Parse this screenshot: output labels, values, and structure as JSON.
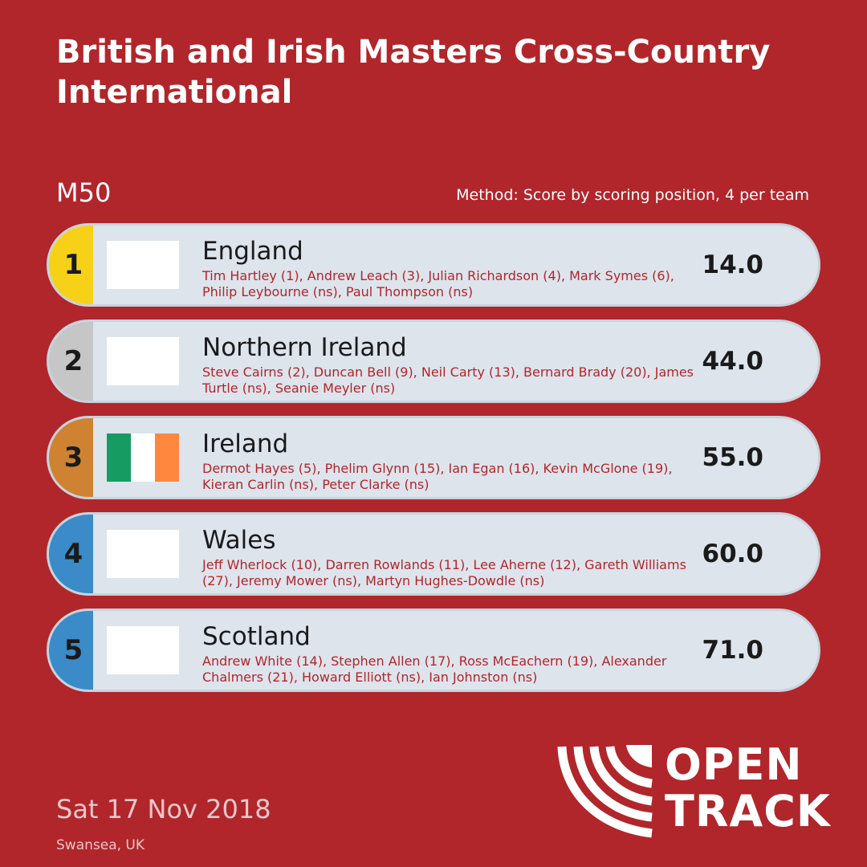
{
  "header": {
    "title": "British and Irish Masters Cross-Country International",
    "category": "M50",
    "method": "Method: Score by scoring position, 4 per team"
  },
  "results": [
    {
      "rank": "1",
      "team": "England",
      "athletes": "Tim Hartley (1), Andrew Leach (3), Julian Richardson (4), Mark Symes (6), Philip Leybourne (ns), Paul Thompson (ns)",
      "score": "14.0",
      "rank_color": "#f7d117",
      "flag_icon": "blank-flag-icon",
      "flag_colors": []
    },
    {
      "rank": "2",
      "team": "Northern Ireland",
      "athletes": "Steve Cairns (2), Duncan Bell (9), Neil Carty (13), Bernard Brady (20), James Turtle (ns), Seanie Meyler (ns)",
      "score": "44.0",
      "rank_color": "#c6c6c6",
      "flag_icon": "blank-flag-icon",
      "flag_colors": []
    },
    {
      "rank": "3",
      "team": "Ireland",
      "athletes": "Dermot Hayes (5), Phelim Glynn (15), Ian Egan (16), Kevin McGlone (19), Kieran Carlin (ns), Peter Clarke (ns)",
      "score": "55.0",
      "rank_color": "#cf8332",
      "flag_icon": "ireland-flag-icon",
      "flag_colors": [
        "#169b62",
        "#ffffff",
        "#ff883e"
      ]
    },
    {
      "rank": "4",
      "team": "Wales",
      "athletes": "Jeff Wherlock (10), Darren Rowlands (11), Lee Aherne (12), Gareth Williams (27), Jeremy Mower (ns), Martyn Hughes-Dowdle (ns)",
      "score": "60.0",
      "rank_color": "#3a8bc8",
      "flag_icon": "blank-flag-icon",
      "flag_colors": []
    },
    {
      "rank": "5",
      "team": "Scotland",
      "athletes": "Andrew White (14), Stephen Allen (17), Ross McEachern (19), Alexander Chalmers (21), Howard Elliott (ns), Ian Johnston (ns)",
      "score": "71.0",
      "rank_color": "#3a8bc8",
      "flag_icon": "blank-flag-icon",
      "flag_colors": []
    }
  ],
  "footer": {
    "date": "Sat 17 Nov 2018",
    "venue": "Swansea, UK"
  },
  "logo": {
    "line1": "OPEN",
    "line2": "TRACK",
    "icon": "opentrack-logo-icon"
  },
  "colors": {
    "background": "#b1262b",
    "card": "#dde4ec",
    "athlete_text": "#b1262b"
  }
}
